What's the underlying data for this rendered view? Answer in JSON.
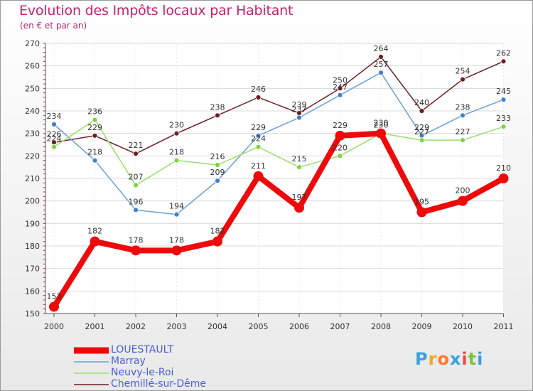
{
  "chart_data": {
    "type": "line",
    "title": "Evolution des Impôts locaux par Habitant",
    "subtitle": "(en € et par an)",
    "xlabel": "",
    "ylabel": "",
    "x": [
      "2000",
      "2001",
      "2002",
      "2003",
      "2004",
      "2005",
      "2006",
      "2007",
      "2008",
      "2009",
      "2010",
      "2011"
    ],
    "ylim": [
      150,
      270
    ],
    "yticks": [
      150,
      160,
      170,
      180,
      190,
      200,
      210,
      220,
      230,
      240,
      250,
      260,
      270
    ],
    "grid": "horizontal",
    "legend_position": "bottom-left",
    "series": [
      {
        "name": "Chemillé-sur-Dême",
        "color": "#6e1f24",
        "marker": "#6e1f24",
        "values": [
          226,
          229,
          221,
          230,
          238,
          246,
          239,
          250,
          264,
          240,
          254,
          262
        ]
      },
      {
        "name": "Marray",
        "color": "#6c9fd2",
        "marker": "#3c82c8",
        "values": [
          234,
          218,
          196,
          194,
          209,
          229,
          237,
          247,
          257,
          229,
          238,
          245
        ]
      },
      {
        "name": "Neuvy-le-Roi",
        "color": "#96de6a",
        "marker": "#7dd23e",
        "values": [
          224,
          236,
          207,
          218,
          216,
          224,
          215,
          220,
          230,
          227,
          227,
          233
        ]
      },
      {
        "name": "LOUESTAULT",
        "color": "#ee0a0a",
        "marker": "#ee0a0a",
        "values": [
          153,
          182,
          178,
          178,
          182,
          211,
          197,
          229,
          230,
          195,
          200,
          210
        ]
      }
    ],
    "legend_order": [
      "LOUESTAULT",
      "Marray",
      "Neuvy-le-Roi",
      "Chemillé-sur-Dême"
    ]
  },
  "brand": {
    "letters": [
      "P",
      "r",
      "o",
      "x",
      "i",
      "t",
      "i"
    ],
    "colors": [
      "#3aa0e0",
      "#f5a623",
      "#ff7a2a",
      "#3aa0e0",
      "#e84a4a",
      "#7cc242",
      "#3aa0e0"
    ]
  }
}
